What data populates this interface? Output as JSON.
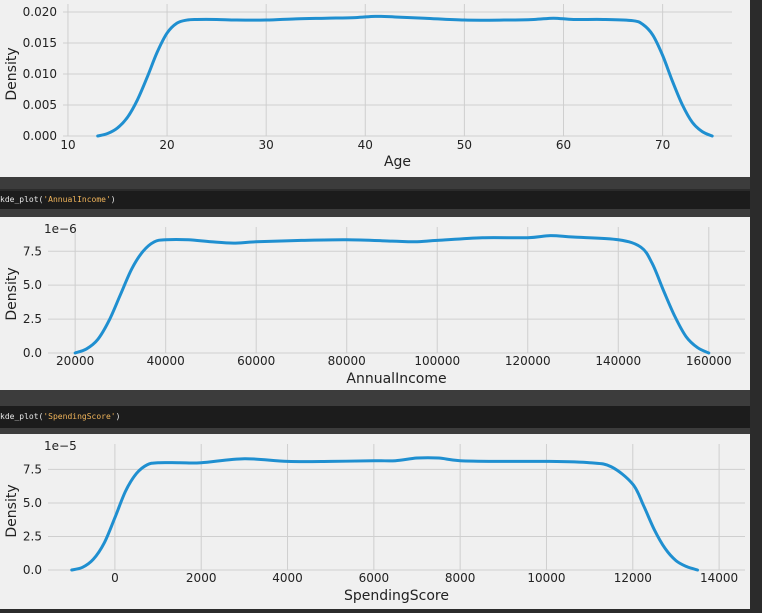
{
  "cells": [
    {
      "code_fn": "kde_plot(",
      "code_arg": "'AnnualIncome'",
      "code_close": ")"
    },
    {
      "code_fn": "kde_plot(",
      "code_arg": "'SpendingScore'",
      "code_close": ")"
    }
  ],
  "colors": {
    "line": "#1f8fd0",
    "panel": "#f0f0f0",
    "grid": "#cfcfcf"
  },
  "chart_data": [
    {
      "type": "line",
      "xlabel": "Age",
      "ylabel": "Density",
      "offset_text": "",
      "xlim": [
        9.5,
        77
      ],
      "ylim": [
        0,
        0.02
      ],
      "xticks": [
        10,
        20,
        30,
        40,
        50,
        60,
        70
      ],
      "xtick_labels": [
        "10",
        "20",
        "30",
        "40",
        "50",
        "60",
        "70"
      ],
      "yticks": [
        0,
        0.005,
        0.01,
        0.015,
        0.02
      ],
      "ytick_labels": [
        "0.000",
        "0.005",
        "0.010",
        "0.015",
        "0.020"
      ],
      "grid": true,
      "series": [
        {
          "x": [
            13,
            14,
            15,
            16,
            17,
            18,
            19,
            20,
            21,
            22,
            23,
            25,
            27,
            30,
            33,
            36,
            39,
            41,
            43,
            46,
            50,
            54,
            57,
            59,
            61,
            64,
            67,
            68,
            69,
            70,
            71,
            72,
            73,
            74,
            75
          ],
          "y": [
            0.0,
            0.0004,
            0.0013,
            0.003,
            0.0058,
            0.0095,
            0.0135,
            0.0166,
            0.0182,
            0.0187,
            0.0188,
            0.0188,
            0.0187,
            0.0187,
            0.0189,
            0.019,
            0.0191,
            0.0193,
            0.0192,
            0.019,
            0.0187,
            0.0187,
            0.0188,
            0.019,
            0.0188,
            0.0188,
            0.0186,
            0.018,
            0.0163,
            0.013,
            0.0088,
            0.005,
            0.0022,
            0.0007,
            0.0
          ]
        }
      ]
    },
    {
      "type": "line",
      "xlabel": "AnnualIncome",
      "ylabel": "Density",
      "offset_text": "1e−6",
      "xlim": [
        14000,
        168000
      ],
      "ylim": [
        0,
        8.7
      ],
      "xticks": [
        20000,
        40000,
        60000,
        80000,
        100000,
        120000,
        140000,
        160000
      ],
      "xtick_labels": [
        "20000",
        "40000",
        "60000",
        "80000",
        "100000",
        "120000",
        "140000",
        "160000"
      ],
      "yticks": [
        0,
        2.5,
        5.0,
        7.5
      ],
      "ytick_labels": [
        "0.0",
        "2.5",
        "5.0",
        "7.5"
      ],
      "grid": true,
      "series": [
        {
          "x": [
            20000,
            22500,
            25000,
            27500,
            30000,
            32500,
            35000,
            37500,
            40000,
            45000,
            50000,
            55000,
            60000,
            70000,
            80000,
            90000,
            95000,
            100000,
            110000,
            120000,
            125000,
            130000,
            140000,
            145000,
            147500,
            150000,
            152500,
            155000,
            157500,
            160000
          ],
          "y": [
            0.0,
            0.3,
            1.0,
            2.4,
            4.3,
            6.2,
            7.5,
            8.2,
            8.35,
            8.35,
            8.2,
            8.1,
            8.2,
            8.3,
            8.35,
            8.25,
            8.2,
            8.3,
            8.5,
            8.5,
            8.65,
            8.55,
            8.35,
            7.8,
            6.6,
            4.6,
            2.7,
            1.2,
            0.4,
            0.0
          ]
        }
      ]
    },
    {
      "type": "line",
      "xlabel": "SpendingScore",
      "ylabel": "Density",
      "offset_text": "1e−5",
      "xlim": [
        -1550,
        14600
      ],
      "ylim": [
        0,
        8.8
      ],
      "xticks": [
        0,
        2000,
        4000,
        6000,
        8000,
        10000,
        12000,
        14000
      ],
      "xtick_labels": [
        "0",
        "2000",
        "4000",
        "6000",
        "8000",
        "10000",
        "12000",
        "14000"
      ],
      "yticks": [
        0,
        2.5,
        5.0,
        7.5
      ],
      "ytick_labels": [
        "0.0",
        "2.5",
        "5.0",
        "7.5"
      ],
      "grid": true,
      "series": [
        {
          "x": [
            -1000,
            -750,
            -500,
            -250,
            0,
            250,
            500,
            750,
            1000,
            1500,
            2000,
            3000,
            4000,
            5000,
            6000,
            6500,
            7000,
            7500,
            8000,
            9000,
            10000,
            11000,
            11500,
            12000,
            12250,
            12500,
            12750,
            13000,
            13250,
            13500
          ],
          "y": [
            0.0,
            0.2,
            0.8,
            2.0,
            3.9,
            5.9,
            7.2,
            7.85,
            8.0,
            8.0,
            8.0,
            8.3,
            8.1,
            8.1,
            8.15,
            8.15,
            8.35,
            8.35,
            8.15,
            8.1,
            8.1,
            8.0,
            7.7,
            6.4,
            4.8,
            3.0,
            1.6,
            0.7,
            0.25,
            0.0
          ]
        }
      ]
    }
  ]
}
